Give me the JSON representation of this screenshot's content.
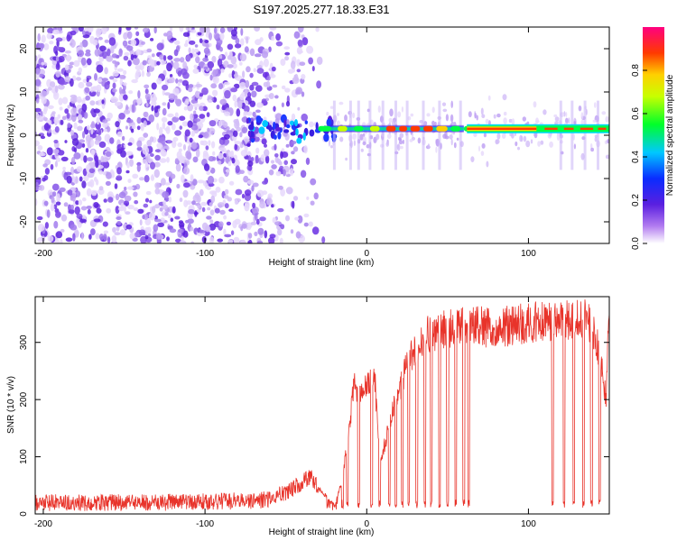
{
  "figure": {
    "title": "S197.2025.277.18.33.E31"
  },
  "chart_data": [
    {
      "type": "heatmap",
      "title": "S197.2025.277.18.33.E31",
      "xlabel": "Height of straight line (km)",
      "ylabel": "Frequency (Hz)",
      "xlim": [
        -205,
        150
      ],
      "ylim": [
        -25,
        25
      ],
      "x_ticks": [
        -200,
        -100,
        0,
        100
      ],
      "y_ticks": [
        -20,
        -10,
        0,
        10,
        20
      ],
      "description_of_field": "noise-dominated speckle below about -30 km, narrow carrier line near +1.5 Hz above about -30 km",
      "carrier_frequency_hz": 1.5,
      "colorbar": {
        "label": "Normalized spectral amplitude",
        "range": [
          0.0,
          1.0
        ],
        "ticks": [
          0.0,
          0.2,
          0.4,
          0.6,
          0.8
        ],
        "tick_labels": [
          "0.0",
          "0.2",
          "0.4",
          "0.6",
          "0.8"
        ],
        "colormap": "rainbow (white-violet-blue-cyan-green-yellow-red-magenta)"
      }
    },
    {
      "type": "line",
      "xlabel": "Height of straight line (km)",
      "ylabel": "SNR (10 * v/v)",
      "xlim": [
        -205,
        150
      ],
      "ylim": [
        0,
        380
      ],
      "x_ticks": [
        -200,
        -100,
        0,
        100
      ],
      "y_ticks": [
        0,
        100,
        200,
        300
      ],
      "series": [
        {
          "name": "SNR",
          "color": "#e8332a",
          "x": [
            -205,
            -180,
            -150,
            -120,
            -90,
            -60,
            -45,
            -35,
            -28,
            -20,
            -15,
            -10,
            -8,
            -5,
            0,
            5,
            8,
            12,
            15,
            20,
            25,
            30,
            35,
            45,
            55,
            65,
            75,
            90,
            110,
            125,
            135,
            140,
            145,
            148,
            150
          ],
          "y": [
            20,
            20,
            20,
            20,
            22,
            25,
            45,
            65,
            40,
            15,
            60,
            170,
            230,
            200,
            225,
            240,
            90,
            130,
            170,
            215,
            260,
            290,
            310,
            320,
            325,
            330,
            325,
            330,
            335,
            340,
            345,
            320,
            270,
            200,
            360
          ]
        }
      ]
    }
  ]
}
